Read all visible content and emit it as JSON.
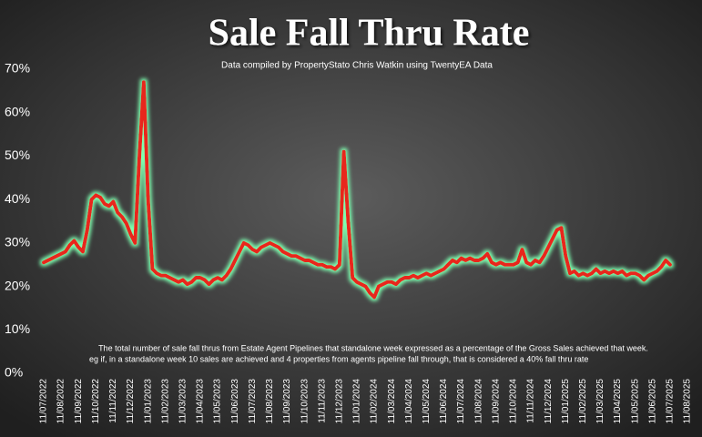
{
  "chart_data": {
    "type": "line",
    "title": "Sale Fall Thru Rate",
    "subtitle": "Data compiled by PropertyStato Chris Watkin using TwentyEA Data",
    "annotations": [
      "The total number of sale fall thrus from Estate Agent Pipelines that standalone week expressed as a percentage of the Gross Sales achieved that week.",
      "eg if, in a standalone week 10 sales are achieved and 4 properties from agents pipeline fall through, that is considered a 40%  fall thru rate"
    ],
    "categories": [
      "11/07/2022",
      null,
      null,
      null,
      "11/08/2022",
      null,
      null,
      null,
      "11/09/2022",
      null,
      null,
      null,
      "11/10/2022",
      null,
      null,
      null,
      "11/11/2022",
      null,
      null,
      null,
      "11/12/2022",
      null,
      null,
      null,
      "11/01/2023",
      null,
      null,
      null,
      "11/02/2023",
      null,
      null,
      null,
      "11/03/2023",
      null,
      null,
      null,
      "11/04/2023",
      null,
      null,
      null,
      "11/05/2023",
      null,
      null,
      null,
      "11/06/2023",
      null,
      null,
      null,
      "11/07/2023",
      null,
      null,
      null,
      "11/08/2023",
      null,
      null,
      null,
      "11/09/2023",
      null,
      null,
      null,
      "11/10/2023",
      null,
      null,
      null,
      "11/11/2023",
      null,
      null,
      null,
      "11/12/2023",
      null,
      null,
      null,
      "11/01/2024",
      null,
      null,
      null,
      "11/02/2024",
      null,
      null,
      null,
      "11/03/2024",
      null,
      null,
      null,
      "11/04/2024",
      null,
      null,
      null,
      "11/05/2024",
      null,
      null,
      null,
      "11/06/2024",
      null,
      null,
      null,
      "11/07/2024",
      null,
      null,
      null,
      "11/08/2024",
      null,
      null,
      null,
      "11/09/2024",
      null,
      null,
      null,
      "11/10/2024",
      null,
      null,
      null,
      "11/11/2024",
      null,
      null,
      null,
      "11/12/2024",
      null,
      null,
      null,
      "11/01/2025",
      null,
      null,
      null,
      "11/02/2025",
      null,
      null,
      null,
      "11/03/2025",
      null,
      null,
      null,
      "11/04/2025",
      null,
      null,
      null,
      "11/05/2025",
      null,
      null,
      null,
      "11/06/2025",
      null,
      null,
      null,
      "11/07/2025",
      null,
      null,
      null,
      "11/08/2025"
    ],
    "series": [
      {
        "color": "#e8261c",
        "glow": "#7dffb0",
        "values": [
          25.5,
          26,
          26.5,
          27,
          27.5,
          28,
          29.5,
          30.5,
          29,
          28,
          33,
          40,
          41,
          40.5,
          39,
          38.5,
          39.5,
          37,
          36,
          34.5,
          32,
          30,
          50,
          67,
          40,
          24,
          23,
          22.5,
          22.5,
          22,
          21.5,
          21,
          21.5,
          20.5,
          21,
          22,
          22,
          21.5,
          20.5,
          21.5,
          22,
          21.5,
          22.5,
          24,
          26,
          28,
          30,
          29.5,
          28.5,
          28,
          29,
          29.5,
          30,
          29.5,
          29,
          28,
          27.5,
          27,
          27,
          26.5,
          26,
          26,
          25.5,
          25,
          25,
          24.5,
          24.5,
          24,
          25,
          51,
          35,
          22,
          21,
          20.5,
          20,
          18.5,
          17.5,
          20,
          20.5,
          21,
          21,
          20.5,
          21.5,
          22,
          22,
          22.5,
          22,
          22.5,
          23,
          22.5,
          23,
          23.5,
          24,
          25,
          26,
          25.5,
          26.5,
          26,
          26.5,
          26,
          26,
          26.5,
          27.5,
          25.5,
          25,
          25.5,
          25,
          25,
          25,
          25.5,
          28.5,
          25.5,
          25,
          26,
          25.5,
          27,
          29,
          31,
          33,
          33.5,
          27,
          23,
          23.5,
          22.5,
          23,
          22.5,
          23,
          24,
          23,
          23.5,
          23,
          23.5,
          23,
          23.5,
          22.5,
          23,
          23,
          22.5,
          21.5,
          22.5,
          23,
          23.5,
          24.5,
          26,
          25,
          null,
          null,
          null,
          null
        ]
      }
    ],
    "ylim": [
      0,
      70
    ],
    "yticks": [
      {
        "value": 0,
        "label": "0%"
      },
      {
        "value": 10,
        "label": "10%"
      },
      {
        "value": 20,
        "label": "20%"
      },
      {
        "value": 30,
        "label": "30%"
      },
      {
        "value": 40,
        "label": "40%"
      },
      {
        "value": 50,
        "label": "50%"
      },
      {
        "value": 60,
        "label": "60%"
      },
      {
        "value": 70,
        "label": "70%"
      }
    ],
    "grid": false
  }
}
